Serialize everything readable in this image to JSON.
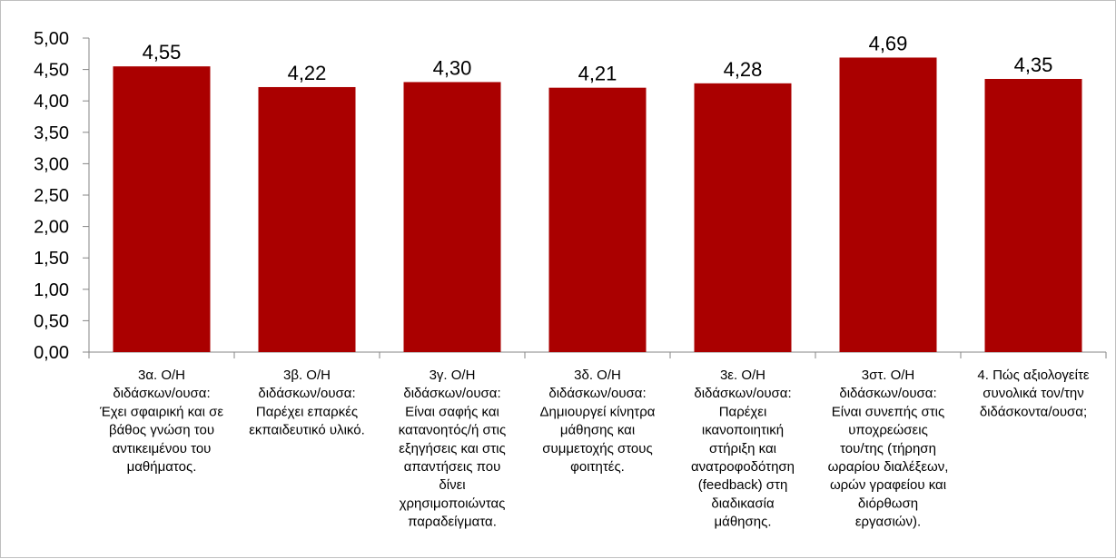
{
  "chart_data": {
    "type": "bar",
    "categories": [
      "3α. Ο/Η διδάσκων/ουσα: Έχει σφαιρική και σε βάθος γνώση του αντικειμένου του μαθήματος.",
      "3β. Ο/Η διδάσκων/ουσα: Παρέχει επαρκές εκπαιδευτικό υλικό.",
      "3γ. Ο/Η διδάσκων/ουσα: Είναι σαφής και κατανοητός/ή στις εξηγήσεις και στις απαντήσεις που δίνει χρησιμοποιώντας παραδείγματα.",
      "3δ. Ο/Η διδάσκων/ουσα: Δημιουργεί κίνητρα μάθησης και συμμετοχής στους φοιτητές.",
      "3ε. Ο/Η διδάσκων/ουσα: Παρέχει ικανοποιητική στήριξη και ανατροφοδότηση (feedback) στη διαδικασία μάθησης.",
      "3στ. Ο/Η διδάσκων/ουσα: Είναι συνεπής στις υποχρεώσεις του/της (τήρηση ωραρίου διαλέξεων, ωρών γραφείου και διόρθωση εργασιών).",
      "4. Πώς αξιολογείτε συνολικά τον/την διδάσκοντα/ουσα;"
    ],
    "category_label_lines": [
      [
        "3α. Ο/Η",
        "διδάσκων/ουσα:",
        "Έχει σφαιρική και σε",
        "βάθος γνώση του",
        "αντικειμένου του",
        "μαθήματος."
      ],
      [
        "3β. Ο/Η",
        "διδάσκων/ουσα:",
        "Παρέχει επαρκές",
        "εκπαιδευτικό υλικό."
      ],
      [
        "3γ. Ο/Η",
        "διδάσκων/ουσα:",
        "Είναι σαφής και",
        "κατανοητός/ή στις",
        "εξηγήσεις και στις",
        "απαντήσεις που",
        "δίνει",
        "χρησιμοποιώντας",
        "παραδείγματα."
      ],
      [
        "3δ. Ο/Η",
        "διδάσκων/ουσα:",
        "Δημιουργεί κίνητρα",
        "μάθησης και",
        "συμμετοχής στους",
        "φοιτητές."
      ],
      [
        "3ε. Ο/Η",
        "διδάσκων/ουσα:",
        "Παρέχει",
        "ικανοποιητική",
        "στήριξη και",
        "ανατροφοδότηση",
        "(feedback) στη",
        "διαδικασία",
        "μάθησης."
      ],
      [
        "3στ. Ο/Η",
        "διδάσκων/ουσα:",
        "Είναι συνεπής στις",
        "υποχρεώσεις",
        "του/της (τήρηση",
        "ωραρίου διαλέξεων,",
        "ωρών γραφείου και",
        "διόρθωση",
        "εργασιών)."
      ],
      [
        "4. Πώς αξιολογείτε",
        "συνολικά τον/την",
        "διδάσκοντα/ουσα;"
      ]
    ],
    "values": [
      4.55,
      4.22,
      4.3,
      4.21,
      4.28,
      4.69,
      4.35
    ],
    "data_labels": [
      "4,55",
      "4,22",
      "4,30",
      "4,21",
      "4,28",
      "4,69",
      "4,35"
    ],
    "y_ticks": [
      0,
      0.5,
      1.0,
      1.5,
      2.0,
      2.5,
      3.0,
      3.5,
      4.0,
      4.5,
      5.0
    ],
    "y_tick_labels": [
      "0,00",
      "0,50",
      "1,00",
      "1,50",
      "2,00",
      "2,50",
      "3,00",
      "3,50",
      "4,00",
      "4,50",
      "5,00"
    ],
    "ylim": [
      0,
      5
    ],
    "title": "",
    "xlabel": "",
    "ylabel": "",
    "grid": false,
    "legend": "none",
    "bar_color": "#aa0000",
    "axis_color": "#868686"
  }
}
